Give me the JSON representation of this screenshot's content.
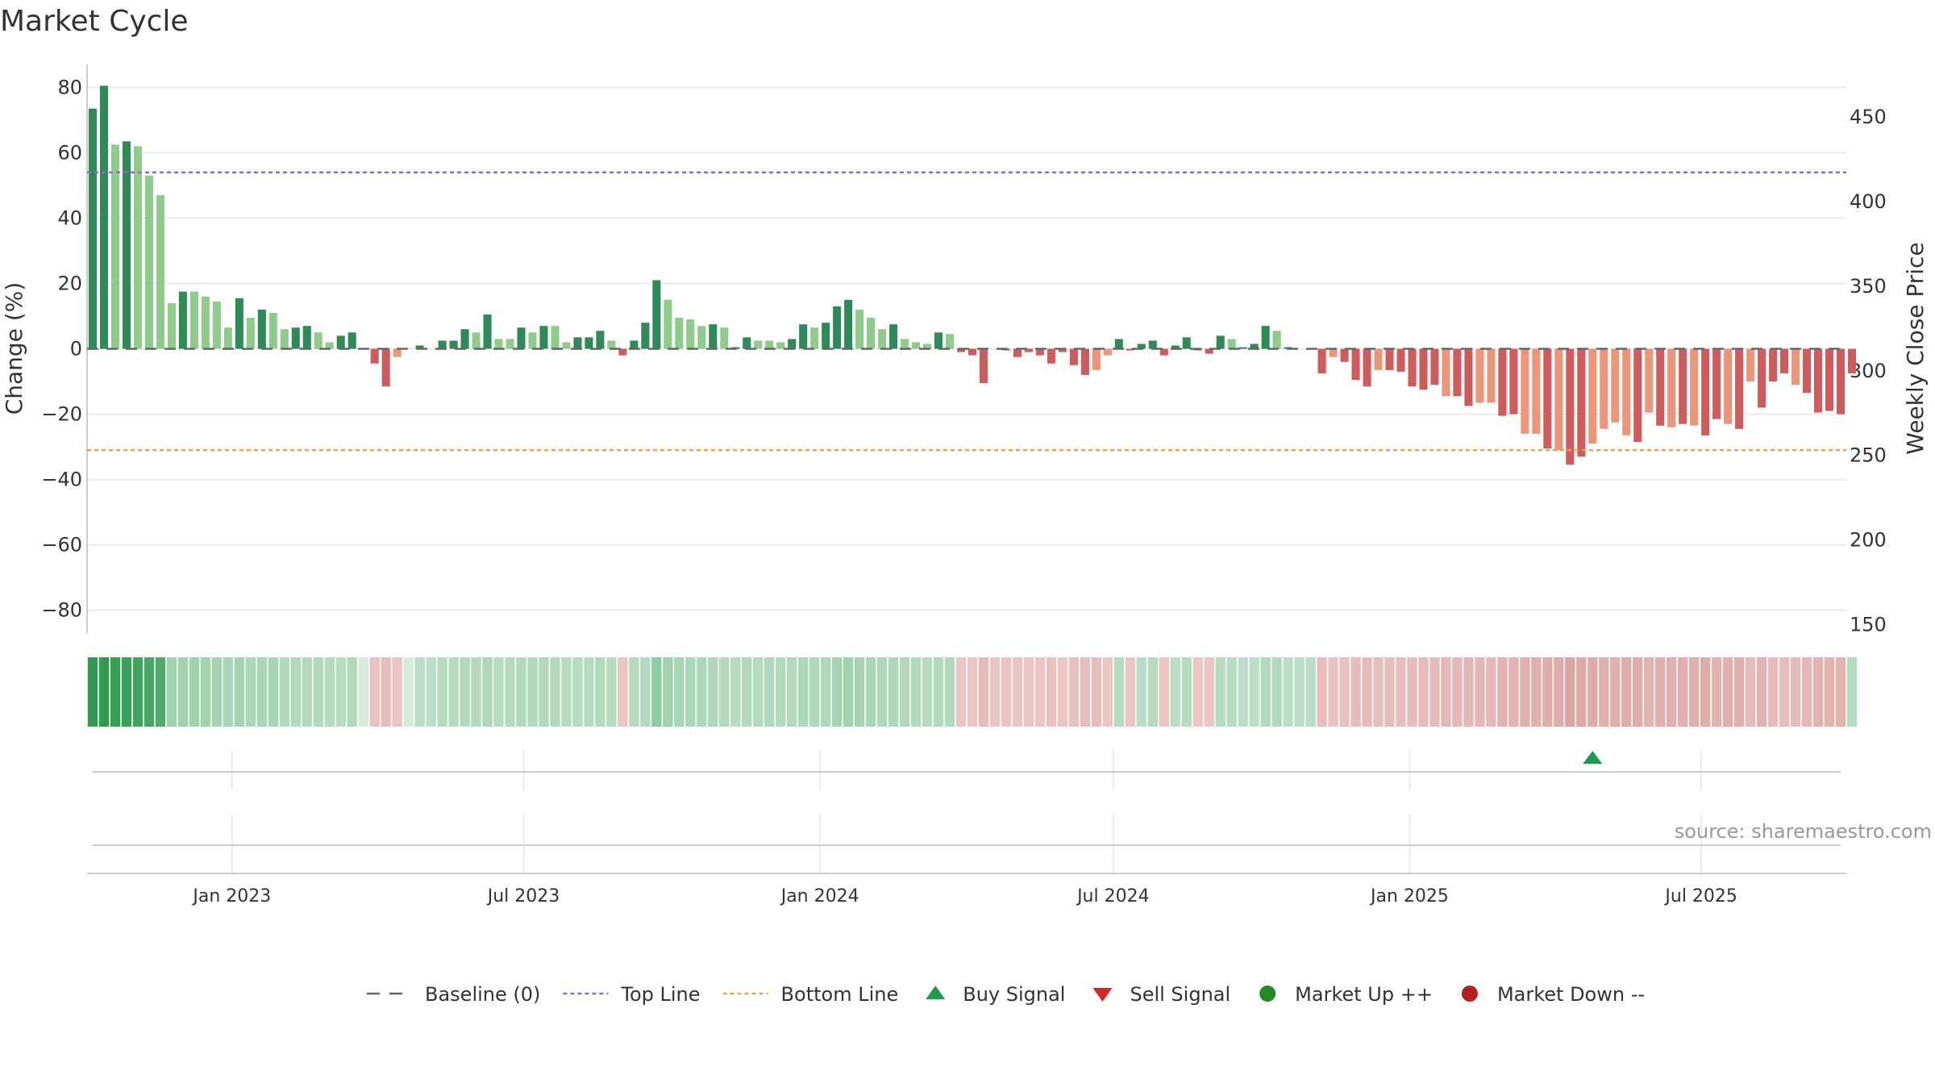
{
  "chart_data": {
    "type": "bar",
    "title": "Market Cycle",
    "ylabel": "Change (%)",
    "y2label": "Weekly Close Price",
    "ylim": [
      -87,
      87
    ],
    "y2lim": [
      145,
      481
    ],
    "yticks": [
      "80",
      "60",
      "40",
      "20",
      "0",
      "−20",
      "−40",
      "−60",
      "−80"
    ],
    "ytick_values": [
      80,
      60,
      40,
      20,
      0,
      -20,
      -40,
      -60,
      -80
    ],
    "y2ticks": [
      "450",
      "400",
      "350",
      "300",
      "250",
      "200",
      "150"
    ],
    "y2tick_values": [
      450,
      400,
      350,
      300,
      250,
      200,
      150
    ],
    "x_start": "2022-10-03",
    "x_end": "2025-09-29",
    "xticks": [
      {
        "label": "Jan 2023",
        "date": "2023-01-01"
      },
      {
        "label": "Jul 2023",
        "date": "2023-07-01"
      },
      {
        "label": "Jan 2024",
        "date": "2024-01-01"
      },
      {
        "label": "Jul 2024",
        "date": "2024-07-01"
      },
      {
        "label": "Jan 2025",
        "date": "2025-01-01"
      },
      {
        "label": "Jul 2025",
        "date": "2025-07-01"
      }
    ],
    "weeks_start": "2022-10-03",
    "weekly_change": [
      73.5,
      80.5,
      62.5,
      63.5,
      62.0,
      53.0,
      47.0,
      14.0,
      17.5,
      17.5,
      16.0,
      14.5,
      6.5,
      15.5,
      9.5,
      12.0,
      11.0,
      6.0,
      6.5,
      7.0,
      5.0,
      2.0,
      4.0,
      5.0,
      0,
      -4.5,
      -11.5,
      -2.5,
      0,
      1.0,
      0,
      2.5,
      2.5,
      6.0,
      5.0,
      10.5,
      3.0,
      3.0,
      6.5,
      5.0,
      7.0,
      7.0,
      2.0,
      3.5,
      3.5,
      5.5,
      2.5,
      -2.0,
      2.5,
      8.0,
      21.0,
      15.0,
      9.5,
      9.0,
      7.0,
      7.5,
      6.5,
      0.5,
      3.5,
      2.5,
      2.5,
      2.0,
      3.0,
      7.5,
      6.5,
      8.0,
      13.0,
      15.0,
      12.0,
      9.5,
      6.0,
      7.5,
      3.0,
      2.0,
      1.5,
      5.0,
      4.5,
      -1.0,
      -2.0,
      -10.5,
      0,
      -0.5,
      -2.5,
      -1.0,
      -2.0,
      -4.5,
      -1.0,
      -5.0,
      -8.0,
      -6.5,
      -2.0,
      3.0,
      -0.5,
      1.5,
      2.5,
      -2.0,
      1.0,
      3.5,
      -0.5,
      -1.5,
      4.0,
      3.0,
      0.5,
      1.5,
      7.0,
      5.5,
      0.5,
      0,
      0,
      -7.5,
      -2.5,
      -4.0,
      -9.5,
      -11.5,
      -6.5,
      -6.5,
      -7.0,
      -11.5,
      -12.5,
      -11.0,
      -14.5,
      -14.5,
      -17.5,
      -16.5,
      -16.5,
      -20.5,
      -20.0,
      -26.0,
      -26.0,
      -30.5,
      -31.0,
      -35.5,
      -33.0,
      -29.0,
      -24.5,
      -22.5,
      -26.5,
      -28.5,
      -19.5,
      -23.5,
      -24.0,
      -23.0,
      -23.5,
      -26.5,
      -21.5,
      -23.0,
      -24.5,
      -10.0,
      -18.0,
      -10.0,
      -7.5,
      -11.0,
      -13.5,
      -19.5,
      -19.0,
      -20.0,
      -7.5
    ],
    "weekly_tone": [
      "d",
      "d",
      "l",
      "d",
      "l",
      "l",
      "l",
      "l",
      "d",
      "l",
      "l",
      "l",
      "l",
      "d",
      "l",
      "d",
      "l",
      "l",
      "d",
      "d",
      "l",
      "l",
      "d",
      "d",
      "d",
      "d",
      "d",
      "l",
      "d",
      "d",
      "d",
      "d",
      "d",
      "d",
      "l",
      "d",
      "l",
      "l",
      "d",
      "l",
      "d",
      "l",
      "l",
      "d",
      "d",
      "d",
      "l",
      "d",
      "d",
      "d",
      "d",
      "l",
      "l",
      "l",
      "l",
      "d",
      "l",
      "d",
      "d",
      "l",
      "l",
      "l",
      "d",
      "d",
      "l",
      "d",
      "d",
      "d",
      "l",
      "l",
      "l",
      "d",
      "l",
      "l",
      "l",
      "d",
      "l",
      "d",
      "d",
      "d",
      "d",
      "d",
      "d",
      "d",
      "d",
      "d",
      "d",
      "d",
      "d",
      "l",
      "l",
      "d",
      "d",
      "d",
      "d",
      "d",
      "d",
      "d",
      "d",
      "d",
      "d",
      "l",
      "d",
      "d",
      "d",
      "l",
      "d",
      "d",
      "d",
      "d",
      "l",
      "d",
      "d",
      "d",
      "l",
      "d",
      "d",
      "d",
      "d",
      "d",
      "l",
      "d",
      "d",
      "l",
      "l",
      "d",
      "d",
      "l",
      "l",
      "d",
      "l",
      "d",
      "d",
      "l",
      "l",
      "l",
      "l",
      "d",
      "l",
      "d",
      "l",
      "d",
      "l",
      "d",
      "d",
      "l",
      "d",
      "l",
      "d",
      "d",
      "d",
      "l",
      "d",
      "d",
      "d",
      "d",
      "d",
      "l"
    ],
    "strength_strip": [
      1.0,
      0.95,
      0.9,
      0.88,
      0.85,
      0.8,
      0.75,
      0.3,
      0.3,
      0.3,
      0.28,
      0.28,
      0.25,
      0.28,
      0.25,
      0.25,
      0.25,
      0.2,
      0.2,
      0.2,
      0.2,
      0.18,
      0.18,
      0.2,
      0.0,
      -0.18,
      -0.2,
      -0.15,
      0.0,
      0.15,
      0.15,
      0.18,
      0.18,
      0.2,
      0.2,
      0.22,
      0.18,
      0.18,
      0.2,
      0.2,
      0.2,
      0.2,
      0.18,
      0.18,
      0.18,
      0.2,
      0.18,
      -0.15,
      0.18,
      0.2,
      0.38,
      0.3,
      0.25,
      0.25,
      0.22,
      0.22,
      0.2,
      0.18,
      0.2,
      0.18,
      0.2,
      0.2,
      0.2,
      0.22,
      0.22,
      0.22,
      0.28,
      0.3,
      0.28,
      0.25,
      0.22,
      0.22,
      0.2,
      0.2,
      0.18,
      0.2,
      0.2,
      -0.15,
      -0.15,
      -0.22,
      -0.15,
      -0.15,
      -0.15,
      -0.15,
      -0.15,
      -0.18,
      -0.15,
      -0.18,
      -0.2,
      -0.2,
      -0.15,
      0.18,
      -0.15,
      0.15,
      0.18,
      -0.15,
      0.15,
      0.18,
      -0.15,
      -0.15,
      0.18,
      0.18,
      0.15,
      0.15,
      0.2,
      0.2,
      0.15,
      0.15,
      0.15,
      -0.2,
      -0.18,
      -0.18,
      -0.22,
      -0.22,
      -0.2,
      -0.2,
      -0.2,
      -0.22,
      -0.22,
      -0.22,
      -0.25,
      -0.25,
      -0.25,
      -0.25,
      -0.25,
      -0.28,
      -0.28,
      -0.3,
      -0.3,
      -0.32,
      -0.33,
      -0.38,
      -0.35,
      -0.33,
      -0.3,
      -0.3,
      -0.32,
      -0.32,
      -0.28,
      -0.3,
      -0.3,
      -0.3,
      -0.3,
      -0.32,
      -0.28,
      -0.3,
      -0.3,
      -0.22,
      -0.28,
      -0.22,
      -0.2,
      -0.22,
      -0.25,
      -0.28,
      -0.28,
      -0.28,
      0.18
    ],
    "top_line": 54,
    "bottom_line": -31,
    "baseline": 0,
    "buy_signals": [
      "2025-04-21"
    ],
    "sell_signals": [],
    "grid": true,
    "legend_position": "bottom-center",
    "legend": [
      {
        "label": "Baseline (0)",
        "kind": "baseline"
      },
      {
        "label": "Top Line",
        "kind": "top"
      },
      {
        "label": "Bottom Line",
        "kind": "bottom"
      },
      {
        "label": "Buy Signal",
        "kind": "buy"
      },
      {
        "label": "Sell Signal",
        "kind": "sell"
      },
      {
        "label": "Market Up ++",
        "kind": "up"
      },
      {
        "label": "Market Down --",
        "kind": "down"
      }
    ],
    "source": "source: sharemaestro.com"
  },
  "colors": {
    "up_dark": "#2e8b57",
    "up_light": "#8fcb8a",
    "down_dark": "#cd5c5c",
    "down_light": "#e9967a",
    "top_line": "#9966cc",
    "bottom_line": "#f0a050",
    "baseline": "#666666",
    "grid": "#e6e6e6",
    "buy": "#1e9b4b",
    "sell": "#d62728",
    "market_up": "#228b22",
    "market_down": "#b22222",
    "strip_up": "#2e9b4e",
    "strip_down": "#c0504d"
  }
}
